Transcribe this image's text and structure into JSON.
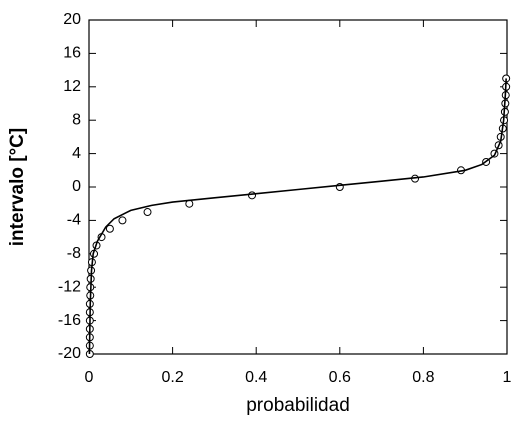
{
  "chart_data": {
    "type": "scatter",
    "xlabel": "probabilidad",
    "ylabel": "intervalo [°C]",
    "xlim": [
      0,
      1
    ],
    "ylim": [
      -20,
      20
    ],
    "xticks": [
      0,
      0.2,
      0.4,
      0.6,
      0.8,
      1
    ],
    "yticks": [
      -20,
      -16,
      -12,
      -8,
      -4,
      0,
      4,
      8,
      12,
      16,
      20
    ],
    "series": [
      {
        "mode": "markers",
        "color": "#000000",
        "x": [
          0.002,
          0.002,
          0.002,
          0.002,
          0.002,
          0.002,
          0.002,
          0.003,
          0.003,
          0.004,
          0.005,
          0.007,
          0.012,
          0.018,
          0.03,
          0.05,
          0.08,
          0.14,
          0.24,
          0.39,
          0.6,
          0.78,
          0.89,
          0.95,
          0.97,
          0.98,
          0.985,
          0.99,
          0.993,
          0.995,
          0.996,
          0.997,
          0.998,
          0.998
        ],
        "values": [
          -20,
          -19,
          -18,
          -17,
          -16,
          -15,
          -14,
          -13,
          -12,
          -11,
          -10,
          -9,
          -8,
          -7,
          -6,
          -5,
          -4,
          -3,
          -2,
          -1,
          0,
          1,
          2,
          3,
          4,
          5,
          6,
          7,
          8,
          9,
          10,
          11,
          12,
          13
        ]
      },
      {
        "mode": "line",
        "color": "#000000",
        "x": [
          0.001,
          0.003,
          0.006,
          0.01,
          0.02,
          0.04,
          0.06,
          0.1,
          0.15,
          0.2,
          0.3,
          0.4,
          0.5,
          0.6,
          0.7,
          0.8,
          0.9,
          0.94,
          0.97,
          0.985,
          0.992,
          0.996,
          0.998
        ],
        "values": [
          -20,
          -14,
          -10,
          -8,
          -6.5,
          -4.8,
          -3.8,
          -2.8,
          -2.2,
          -1.8,
          -1.3,
          -0.8,
          -0.3,
          0.2,
          0.7,
          1.2,
          2.0,
          2.7,
          3.8,
          5.5,
          8,
          11,
          13
        ]
      }
    ]
  }
}
